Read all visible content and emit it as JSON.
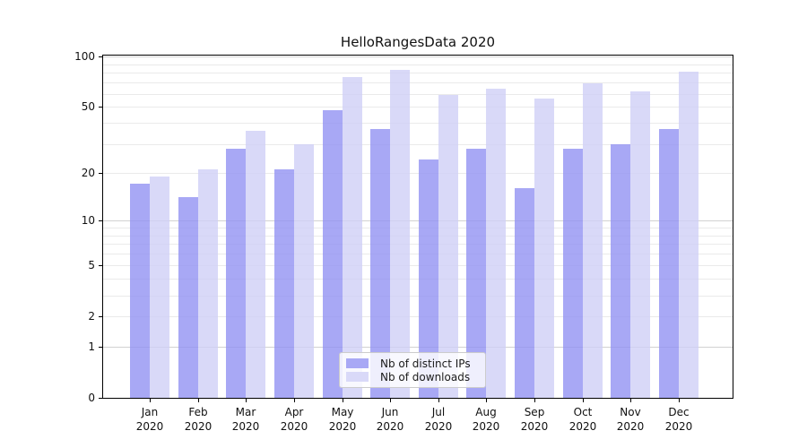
{
  "title": "HelloRangesData 2020",
  "colors": {
    "ips_bar": "rgba(146,146,243,0.8)",
    "downloads_bar": "rgba(208,208,246,0.8)",
    "ips_solid": "#a8a8f5",
    "downloads_solid": "#d9d9f8",
    "grid_minor": "#eaeaea",
    "grid_major": "#d2d2d2",
    "axis": "#000000",
    "legend_border": "#cccccc"
  },
  "chart_data": {
    "type": "bar",
    "title": "HelloRangesData 2020",
    "x_categories": [
      {
        "month": "Jan",
        "year": "2020"
      },
      {
        "month": "Feb",
        "year": "2020"
      },
      {
        "month": "Mar",
        "year": "2020"
      },
      {
        "month": "Apr",
        "year": "2020"
      },
      {
        "month": "May",
        "year": "2020"
      },
      {
        "month": "Jun",
        "year": "2020"
      },
      {
        "month": "Jul",
        "year": "2020"
      },
      {
        "month": "Aug",
        "year": "2020"
      },
      {
        "month": "Sep",
        "year": "2020"
      },
      {
        "month": "Oct",
        "year": "2020"
      },
      {
        "month": "Nov",
        "year": "2020"
      },
      {
        "month": "Dec",
        "year": "2020"
      }
    ],
    "series": [
      {
        "name": "Nb of distinct IPs",
        "values": [
          17,
          14,
          28,
          21,
          48,
          37,
          24,
          28,
          16,
          28,
          30,
          37
        ]
      },
      {
        "name": "Nb of downloads",
        "values": [
          19,
          21,
          36,
          30,
          75,
          83,
          59,
          64,
          56,
          69,
          62,
          81
        ]
      }
    ],
    "y_scale": "log10(1+v)",
    "y_tick_values": [
      0,
      1,
      2,
      5,
      10,
      20,
      50,
      100
    ],
    "y_tick_labels": [
      "0",
      "1",
      "2",
      "5",
      "10",
      "20",
      "50",
      "100"
    ],
    "y_minor_gridlines": [
      2,
      3,
      4,
      5,
      6,
      7,
      8,
      9,
      20,
      30,
      40,
      50,
      60,
      70,
      80,
      90
    ],
    "y_major_gridlines": [
      1,
      10,
      100
    ],
    "ylim": [
      0,
      102
    ],
    "grid": true,
    "legend_position": "inside-bottom-center"
  }
}
